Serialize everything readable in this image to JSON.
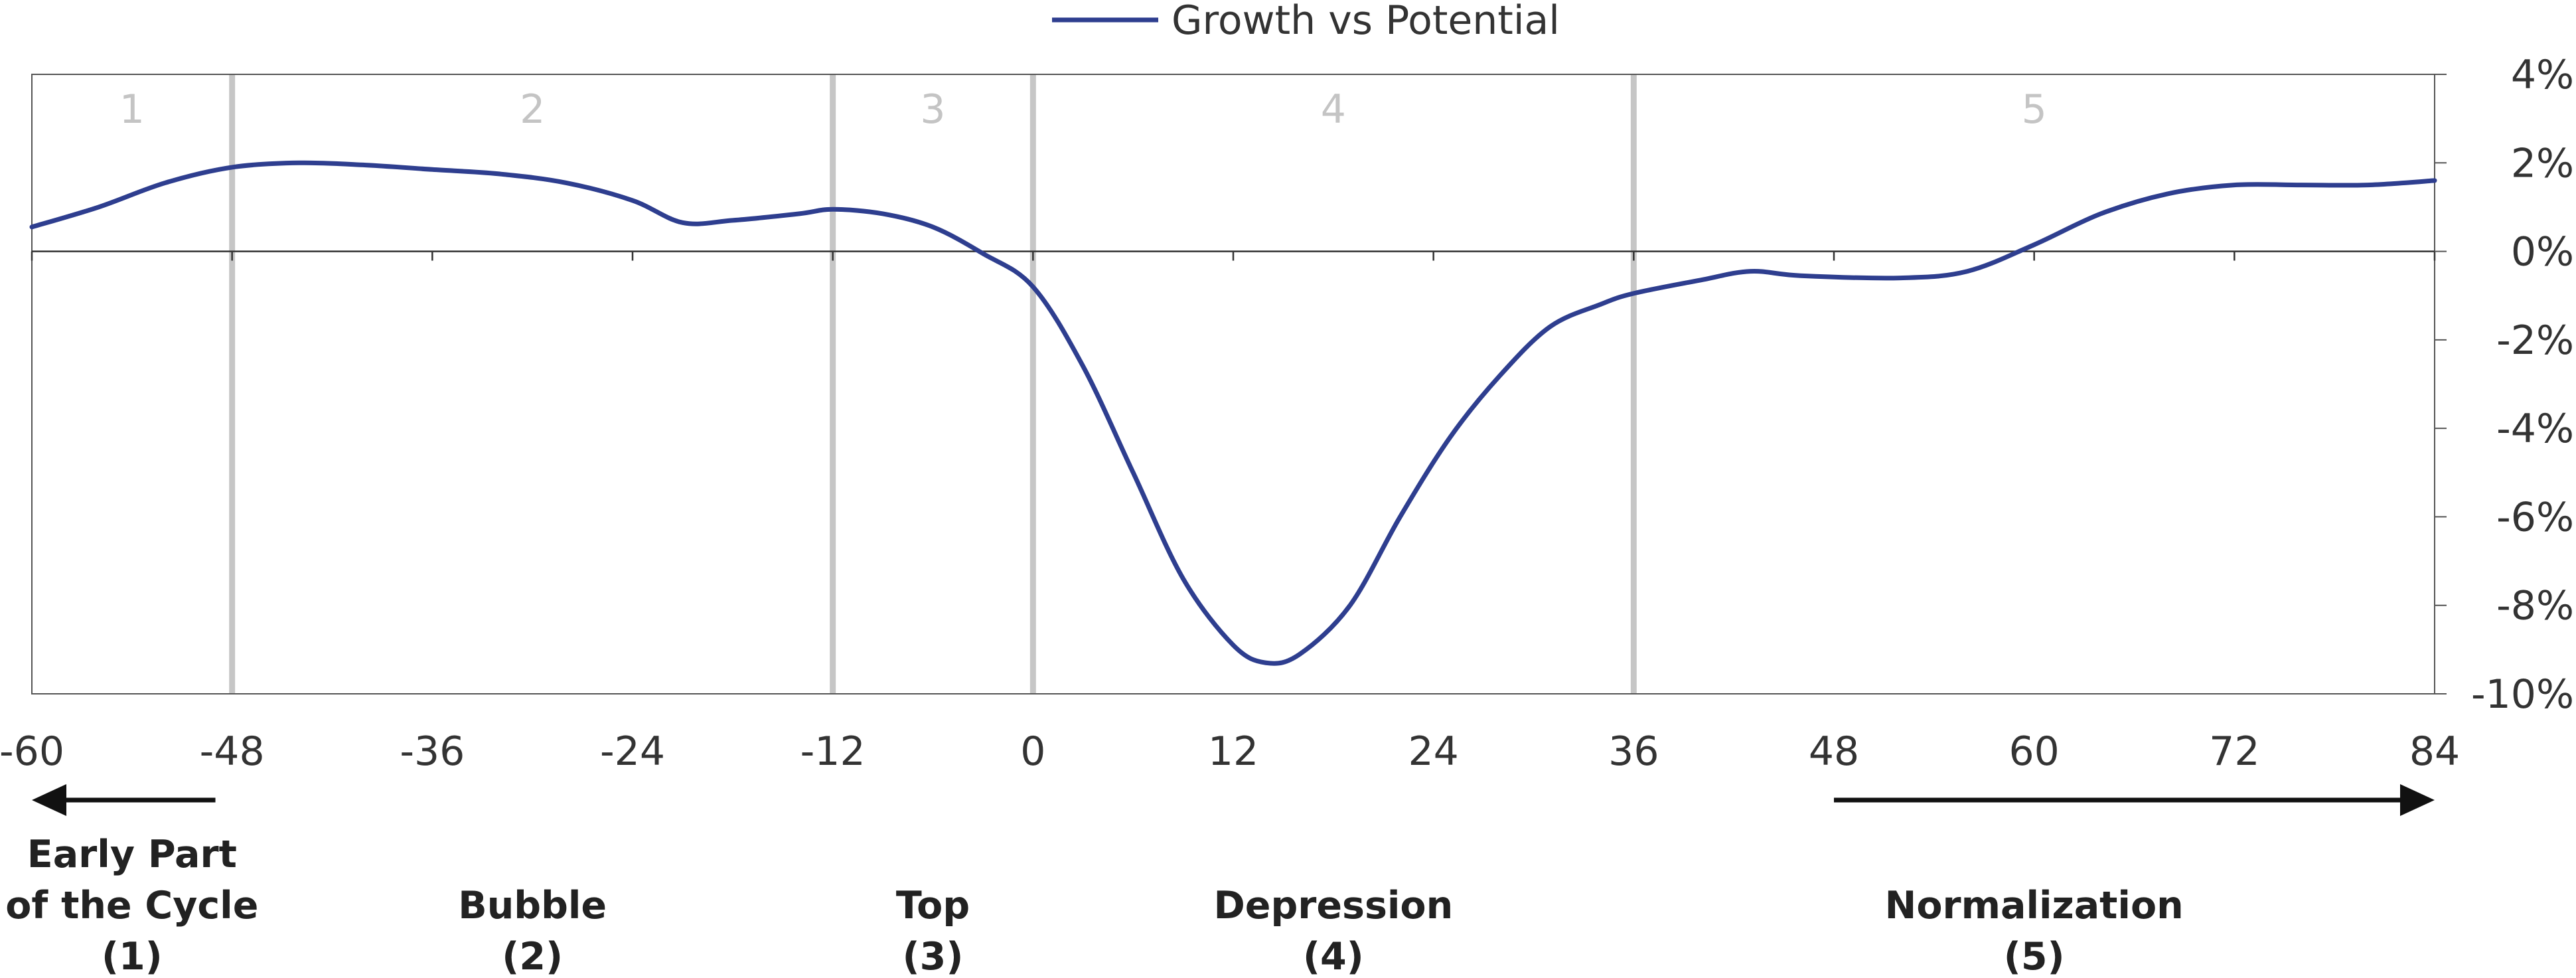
{
  "chart_data": {
    "type": "line",
    "legend": {
      "position": "top-center",
      "entries": [
        "Growth vs Potential"
      ]
    },
    "series": [
      {
        "name": "Growth vs Potential",
        "color": "#2e3e8f",
        "points": [
          [
            -60,
            0.55
          ],
          [
            -56,
            1.0
          ],
          [
            -52,
            1.55
          ],
          [
            -48,
            1.9
          ],
          [
            -44,
            2.0
          ],
          [
            -40,
            1.95
          ],
          [
            -36,
            1.85
          ],
          [
            -32,
            1.75
          ],
          [
            -28,
            1.55
          ],
          [
            -24,
            1.15
          ],
          [
            -21,
            0.65
          ],
          [
            -18,
            0.7
          ],
          [
            -14,
            0.85
          ],
          [
            -12,
            0.95
          ],
          [
            -9,
            0.85
          ],
          [
            -6,
            0.55
          ],
          [
            -3,
            -0.05
          ],
          [
            0,
            -0.8
          ],
          [
            3,
            -2.6
          ],
          [
            6,
            -5.0
          ],
          [
            9,
            -7.4
          ],
          [
            12,
            -8.9
          ],
          [
            14,
            -9.3
          ],
          [
            16,
            -9.1
          ],
          [
            19,
            -8.0
          ],
          [
            22,
            -6.0
          ],
          [
            25,
            -4.2
          ],
          [
            28,
            -2.8
          ],
          [
            31,
            -1.7
          ],
          [
            34,
            -1.2
          ],
          [
            36,
            -0.95
          ],
          [
            40,
            -0.65
          ],
          [
            43,
            -0.45
          ],
          [
            46,
            -0.55
          ],
          [
            52,
            -0.6
          ],
          [
            56,
            -0.45
          ],
          [
            60,
            0.15
          ],
          [
            64,
            0.85
          ],
          [
            68,
            1.3
          ],
          [
            72,
            1.5
          ],
          [
            76,
            1.5
          ],
          [
            80,
            1.5
          ],
          [
            84,
            1.6
          ]
        ]
      }
    ],
    "x_ticks": [
      -60,
      -48,
      -36,
      -24,
      -12,
      0,
      12,
      24,
      36,
      48,
      60,
      72,
      84
    ],
    "x_tick_labels": [
      "-60",
      "-48",
      "-36",
      "-24",
      "-12",
      "0",
      "12",
      "24",
      "36",
      "48",
      "60",
      "72",
      "84"
    ],
    "xlim": [
      -60,
      84
    ],
    "y_ticks": [
      4,
      2,
      0,
      -2,
      -4,
      -6,
      -8,
      -10
    ],
    "y_tick_labels": [
      "4%",
      "2%",
      "0%",
      "-2%",
      "-4%",
      "-6%",
      "-8%",
      "-10%"
    ],
    "ylim": [
      -10,
      4
    ],
    "y_axis_side": "right",
    "regions": [
      {
        "number": "1",
        "start": -60,
        "end": -48
      },
      {
        "number": "2",
        "start": -48,
        "end": -12
      },
      {
        "number": "3",
        "start": -12,
        "end": 0
      },
      {
        "number": "4",
        "start": 0,
        "end": 36
      },
      {
        "number": "5",
        "start": 36,
        "end": 84
      }
    ],
    "region_dividers": [
      -48,
      -12,
      0,
      36
    ],
    "grid": false,
    "phases": [
      {
        "lines": [
          "Early Part",
          "of the Cycle",
          "(1)"
        ],
        "center": -54
      },
      {
        "lines": [
          "Bubble",
          "(2)"
        ],
        "center": -30
      },
      {
        "lines": [
          "Top",
          "(3)"
        ],
        "center": -6
      },
      {
        "lines": [
          "Depression",
          "(4)"
        ],
        "center": 18
      },
      {
        "lines": [
          "Normalization",
          "(5)"
        ],
        "center": 60
      }
    ],
    "arrows": [
      {
        "direction": "left",
        "from": -49,
        "to": -60
      },
      {
        "direction": "right",
        "from": 48,
        "to": 84
      }
    ]
  }
}
